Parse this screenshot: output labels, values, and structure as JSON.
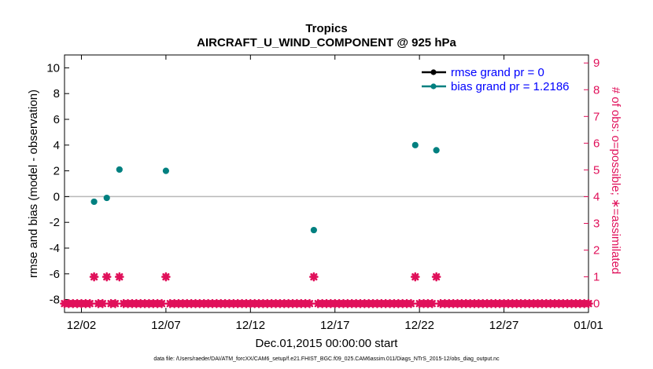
{
  "chart_data": {
    "type": "scatter",
    "title": "Tropics",
    "subtitle": "AIRCRAFT_U_WIND_COMPONENT @ 925 hPa",
    "xlabel": "Dec.01,2015 00:00:00 start",
    "ylabel": "rmse and bias (model - observation)",
    "y2label": "# of obs: o=possible; ∗=assimilated",
    "xlim": [
      "12/01",
      "01/01"
    ],
    "x_ticks": [
      "12/02",
      "12/07",
      "12/12",
      "12/17",
      "12/22",
      "12/27",
      "01/01"
    ],
    "ylim": [
      -9,
      11
    ],
    "y_ticks": [
      "-8",
      "-6",
      "-4",
      "-2",
      "0",
      "2",
      "4",
      "6",
      "8",
      "10"
    ],
    "y2lim": [
      -0.3333,
      9.3
    ],
    "y2_ticks": [
      "0",
      "1",
      "2",
      "3",
      "4",
      "5",
      "6",
      "7",
      "8",
      "9"
    ],
    "zero_line": true,
    "grid": false,
    "legend_position": "top-right",
    "legend": [
      "rmse grand pr = 0",
      "bias grand pr = 1.2186"
    ],
    "series": [
      {
        "name": "bias grand pr = 1.2186",
        "axis": "left",
        "x": [
          "12/02 18:00",
          "12/03 12:00",
          "12/04 06:00",
          "12/07 00:00",
          "12/15 18:00",
          "12/21 18:00",
          "12/23 00:00"
        ],
        "values": [
          -0.4,
          -0.1,
          2.1,
          2.0,
          -2.6,
          4.0,
          3.6
        ]
      },
      {
        "name": "# of obs assimilated",
        "axis": "right",
        "x": [
          "12/02 18:00",
          "12/03 12:00",
          "12/04 06:00",
          "12/07 00:00",
          "12/15 18:00",
          "12/21 18:00",
          "12/23 00:00"
        ],
        "values": [
          1,
          1,
          1,
          1,
          1,
          1,
          1
        ],
        "zero_baseline": true
      }
    ]
  },
  "footer": "data file: /Users/raeder/DAI/ATM_forcXX/CAM6_setup/f.e21.FHIST_BGC.f09_025.CAM6assim.011/Diags_NTrS_2015-12/obs_diag_output.nc",
  "colors": {
    "bias": "#008080",
    "rmse": "#000000",
    "obs": "#e0105a",
    "legend_text": "#0000ff",
    "zero_line": "#b8b8b8"
  }
}
